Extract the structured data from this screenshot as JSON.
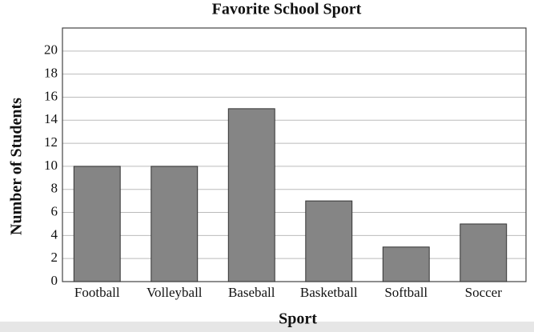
{
  "chart_data": {
    "type": "bar",
    "title": "Favorite School Sport",
    "x_label": "Sport",
    "y_label": "Number of Students",
    "categories": [
      "Football",
      "Volleyball",
      "Baseball",
      "Basketball",
      "Softball",
      "Soccer"
    ],
    "values": [
      10,
      10,
      15,
      7,
      3,
      5
    ],
    "color": "#858585",
    "ylim": [
      0,
      22
    ],
    "yticks": [
      0,
      2,
      4,
      6,
      8,
      10,
      12,
      14,
      16,
      18,
      20
    ],
    "grid": true
  }
}
